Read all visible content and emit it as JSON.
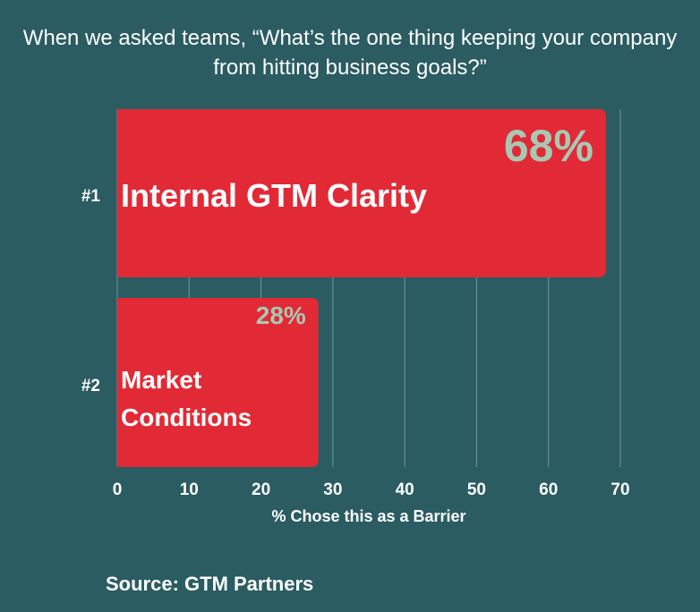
{
  "title_lines": [
    "When we asked teams, “What’s the one thing keeping your company",
    "from hitting business goals?”"
  ],
  "source": "Source: GTM Partners",
  "colors": {
    "background": "#2a5c62",
    "bar": "#e12a36",
    "value_label": "#a8c8b4",
    "grid": "#6f9a9c",
    "text": "#ffffff"
  },
  "chart_data": {
    "type": "bar",
    "orientation": "horizontal",
    "categories": [
      "Internal GTM Clarity",
      "Market Conditions"
    ],
    "rank_labels": [
      "#1",
      "#2"
    ],
    "values": [
      68,
      28
    ],
    "value_labels": [
      "68%",
      "28%"
    ],
    "xlabel": "% Chose this as a Barrier",
    "xlim": [
      0,
      70
    ],
    "x_ticks": [
      0,
      10,
      20,
      30,
      40,
      50,
      60,
      70
    ],
    "grid": true
  }
}
